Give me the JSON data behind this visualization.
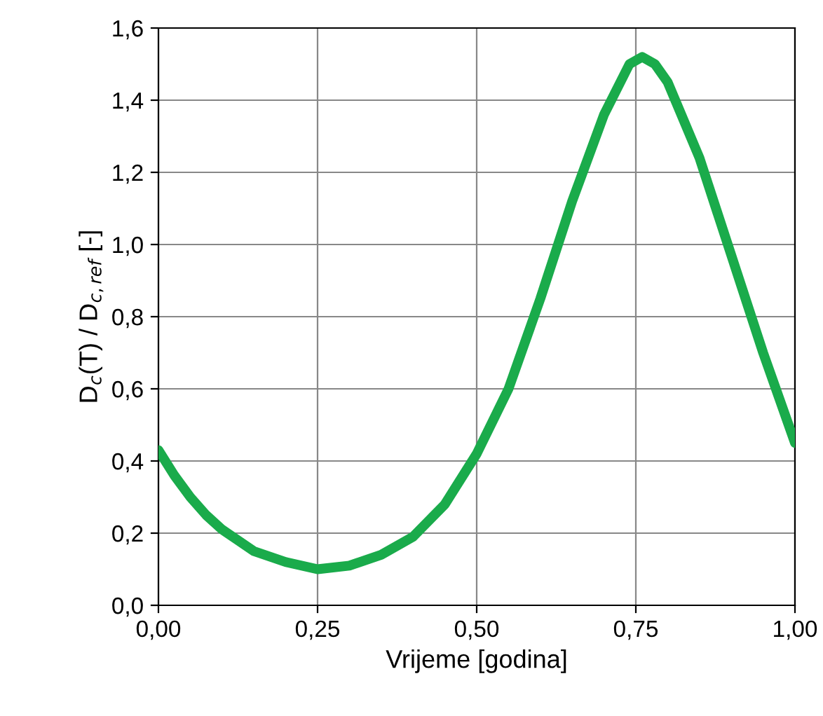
{
  "chart_data": {
    "type": "line",
    "xlabel": "Vrijeme [godina]",
    "ylabel": "D$_{c}$(T) / D$_{c,ref}$ [-]",
    "x": [
      0,
      0.025,
      0.05,
      0.075,
      0.1,
      0.125,
      0.15,
      0.2,
      0.25,
      0.3,
      0.35,
      0.4,
      0.45,
      0.5,
      0.55,
      0.6,
      0.65,
      0.7,
      0.74,
      0.76,
      0.78,
      0.8,
      0.85,
      0.9,
      0.95,
      1.0
    ],
    "series": [
      {
        "color": "#1aab4b",
        "values": [
          0.43,
          0.36,
          0.3,
          0.25,
          0.21,
          0.18,
          0.15,
          0.12,
          0.1,
          0.11,
          0.14,
          0.19,
          0.28,
          0.42,
          0.6,
          0.85,
          1.12,
          1.36,
          1.5,
          1.52,
          1.5,
          1.45,
          1.24,
          0.97,
          0.7,
          0.45
        ]
      }
    ],
    "xlim": [
      0,
      1
    ],
    "ylim": [
      0,
      1.6
    ],
    "xticks": [
      {
        "value": 0,
        "label": "0,00"
      },
      {
        "value": 0.25,
        "label": "0,25"
      },
      {
        "value": 0.5,
        "label": "0,50"
      },
      {
        "value": 0.75,
        "label": "0,75"
      },
      {
        "value": 1,
        "label": "1,00"
      }
    ],
    "yticks": [
      {
        "value": 0,
        "label": "0,0"
      },
      {
        "value": 0.2,
        "label": "0,2"
      },
      {
        "value": 0.4,
        "label": "0,4"
      },
      {
        "value": 0.6,
        "label": "0,6"
      },
      {
        "value": 0.8,
        "label": "0,8"
      },
      {
        "value": 1.0,
        "label": "1,0"
      },
      {
        "value": 1.2,
        "label": "1,2"
      },
      {
        "value": 1.4,
        "label": "1,4"
      },
      {
        "value": 1.6,
        "label": "1,6"
      }
    ],
    "grid": true,
    "marker": "none",
    "line_style": "solid"
  }
}
